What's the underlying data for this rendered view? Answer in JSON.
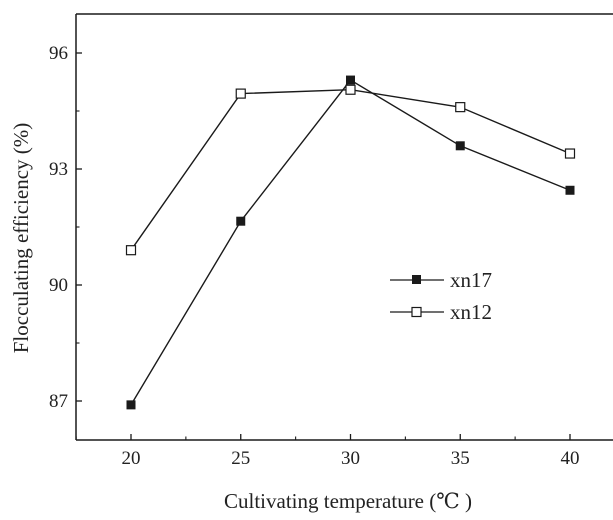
{
  "chart_data": {
    "type": "line",
    "title": "",
    "xlabel": "Cultivating  temperature (℃ )",
    "ylabel": "Flocculating  efficiency (%)",
    "x": [
      20,
      25,
      30,
      35,
      40
    ],
    "xlim": [
      15,
      45
    ],
    "ylim": [
      86,
      97
    ],
    "x_ticks": [
      20,
      25,
      30,
      35,
      40
    ],
    "y_ticks": [
      87,
      90,
      93,
      96
    ],
    "x_tick_labels": [
      "20",
      "25",
      "30",
      "35",
      "40"
    ],
    "y_tick_labels": [
      "87",
      "90",
      "93",
      "96"
    ],
    "legend_position": "center-right",
    "grid": false,
    "series": [
      {
        "name": "xn17",
        "marker": "filled-square",
        "color": "#1a1a1a",
        "values": [
          86.9,
          91.65,
          95.3,
          93.6,
          92.45
        ]
      },
      {
        "name": "xn12",
        "marker": "open-square",
        "color": "#1a1a1a",
        "values": [
          90.9,
          94.95,
          95.05,
          94.6,
          93.4
        ]
      }
    ]
  }
}
